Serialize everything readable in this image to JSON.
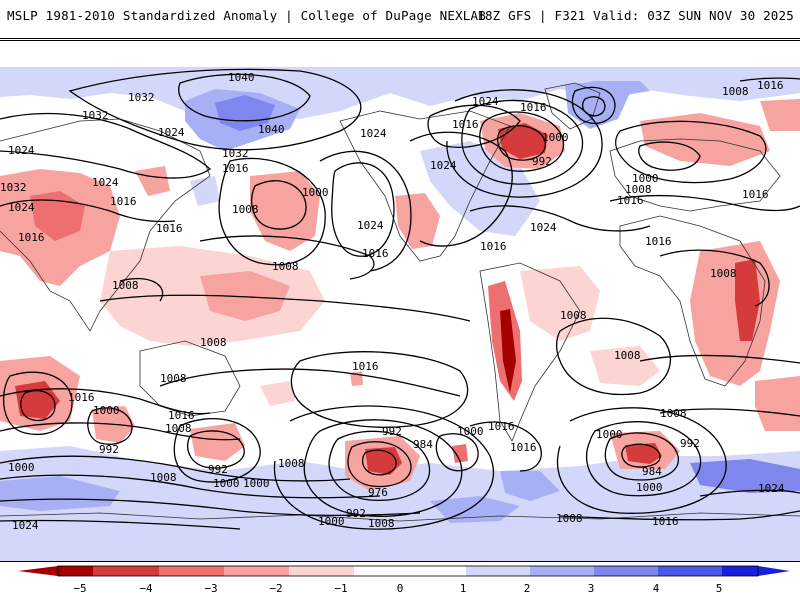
{
  "header": {
    "left_title": "MSLP 1981-2010 Standardized Anomaly | College of DuPage NEXLAB",
    "right_title": "18Z GFS | F321 Valid: 03Z SUN NOV 30 2025"
  },
  "colors": {
    "neg5": "#a50000",
    "neg4": "#d63b3b",
    "neg3": "#ee6f6f",
    "neg2": "#f7a3a0",
    "neg1": "#fcd4d2",
    "zero": "#ffffff",
    "pos1": "#d3d7fa",
    "pos2": "#a8b0f5",
    "pos3": "#7f87ee",
    "pos4": "#4c57e6",
    "pos5": "#1a1fdc"
  },
  "isobar_labels": [
    {
      "id": "l01",
      "text": "1040"
    },
    {
      "id": "l02",
      "text": "1032"
    },
    {
      "id": "l03",
      "text": "1032"
    },
    {
      "id": "l04",
      "text": "1024"
    },
    {
      "id": "l05",
      "text": "1040"
    },
    {
      "id": "l06",
      "text": "1032"
    },
    {
      "id": "l07",
      "text": "1016"
    },
    {
      "id": "l08",
      "text": "1024"
    },
    {
      "id": "l09",
      "text": "1024"
    },
    {
      "id": "l10",
      "text": "1024"
    },
    {
      "id": "l11",
      "text": "1008"
    },
    {
      "id": "l12",
      "text": "1016"
    },
    {
      "id": "l13",
      "text": "1032"
    },
    {
      "id": "l14",
      "text": "1024"
    },
    {
      "id": "l15",
      "text": "1008"
    },
    {
      "id": "l16",
      "text": "1016"
    },
    {
      "id": "l17",
      "text": "1024"
    },
    {
      "id": "l18",
      "text": "1016"
    },
    {
      "id": "l19",
      "text": "1016"
    },
    {
      "id": "l20",
      "text": "1024"
    },
    {
      "id": "l21",
      "text": "1016"
    },
    {
      "id": "l22",
      "text": "1024"
    },
    {
      "id": "l23",
      "text": "1016"
    },
    {
      "id": "l24",
      "text": "1008"
    },
    {
      "id": "l25",
      "text": "1000"
    },
    {
      "id": "l26",
      "text": "1000"
    },
    {
      "id": "l27",
      "text": "992"
    },
    {
      "id": "l28",
      "text": "1024"
    },
    {
      "id": "l29",
      "text": "1016"
    },
    {
      "id": "l30",
      "text": "1008"
    },
    {
      "id": "l31",
      "text": "1000"
    },
    {
      "id": "l32",
      "text": "1008"
    },
    {
      "id": "l33",
      "text": "1016"
    },
    {
      "id": "l34",
      "text": "1008"
    },
    {
      "id": "l35",
      "text": "1016"
    },
    {
      "id": "l36",
      "text": "1008"
    },
    {
      "id": "l37",
      "text": "1008"
    },
    {
      "id": "l38",
      "text": "1008"
    },
    {
      "id": "l39",
      "text": "1008"
    },
    {
      "id": "l40",
      "text": "1016"
    },
    {
      "id": "l41",
      "text": "1016"
    },
    {
      "id": "l42",
      "text": "1000"
    },
    {
      "id": "l43",
      "text": "1016"
    },
    {
      "id": "l44",
      "text": "1008"
    },
    {
      "id": "l45",
      "text": "992"
    },
    {
      "id": "l46",
      "text": "992"
    },
    {
      "id": "l47",
      "text": "1008"
    },
    {
      "id": "l48",
      "text": "1000"
    },
    {
      "id": "l49",
      "text": "992"
    },
    {
      "id": "l50",
      "text": "984"
    },
    {
      "id": "l51",
      "text": "1000"
    },
    {
      "id": "l52",
      "text": "1016"
    },
    {
      "id": "l53",
      "text": "1016"
    },
    {
      "id": "l54",
      "text": "976"
    },
    {
      "id": "l55",
      "text": "992"
    },
    {
      "id": "l56",
      "text": "1000"
    },
    {
      "id": "l57",
      "text": "1008"
    },
    {
      "id": "l58",
      "text": "1008"
    },
    {
      "id": "l59",
      "text": "1000"
    },
    {
      "id": "l60",
      "text": "992"
    },
    {
      "id": "l61",
      "text": "984"
    },
    {
      "id": "l62",
      "text": "1000"
    },
    {
      "id": "l63",
      "text": "1024"
    },
    {
      "id": "l64",
      "text": "1016"
    },
    {
      "id": "l65",
      "text": "1000"
    },
    {
      "id": "l66",
      "text": "1024"
    },
    {
      "id": "l67",
      "text": "1008"
    },
    {
      "id": "l68",
      "text": "1000"
    },
    {
      "id": "l69",
      "text": "1008"
    },
    {
      "id": "l70",
      "text": "1016"
    },
    {
      "id": "l71",
      "text": "1016"
    }
  ],
  "legend": {
    "ticks": [
      "−5",
      "−4",
      "−3",
      "−2",
      "−1",
      "0",
      "1",
      "2",
      "3",
      "4",
      "5"
    ]
  }
}
